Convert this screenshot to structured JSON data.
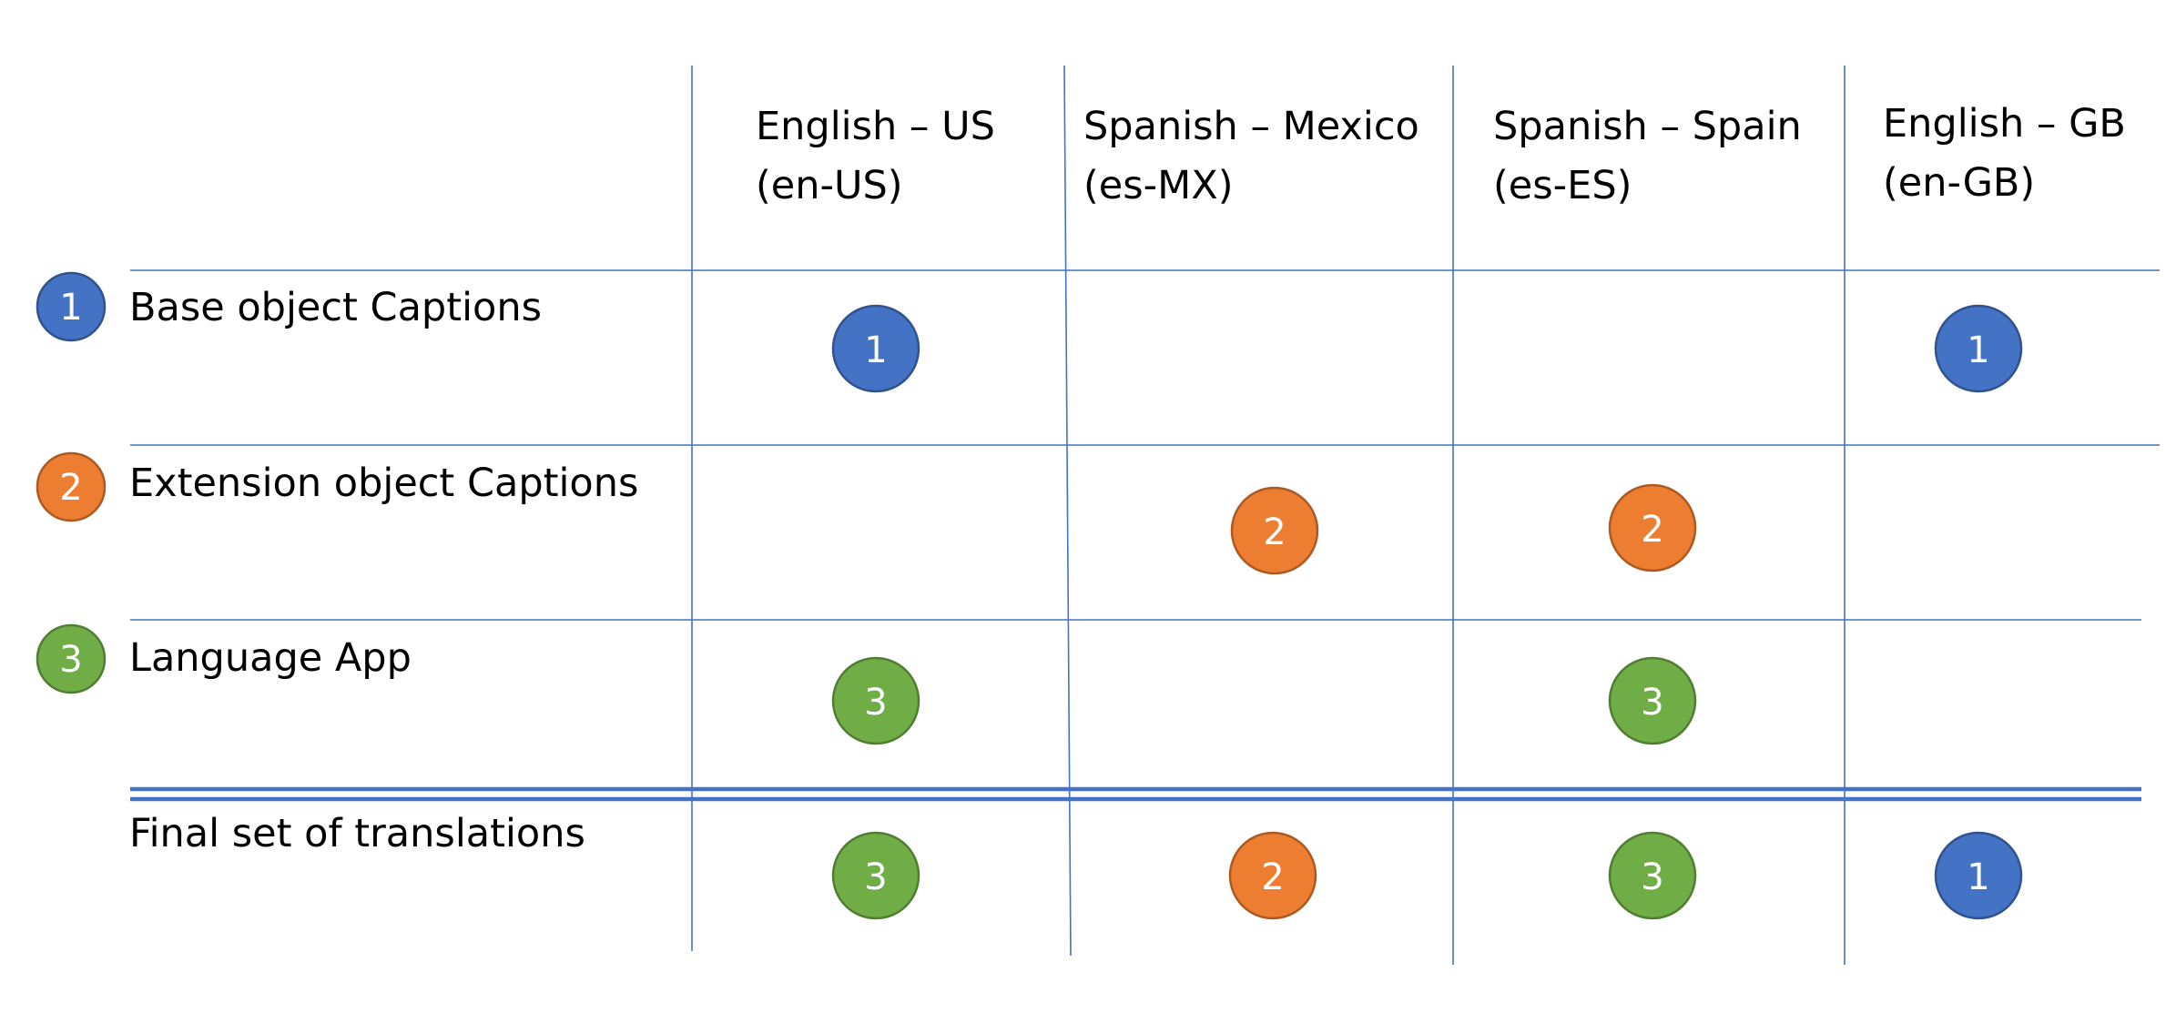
{
  "columns": [
    {
      "id": "en-us",
      "line1": "English – US",
      "line2": "(en-US)"
    },
    {
      "id": "es-mx",
      "line1": "Spanish – Mexico",
      "line2": "(es-MX)"
    },
    {
      "id": "es-es",
      "line1": "Spanish – Spain",
      "line2": "(es-ES)"
    },
    {
      "id": "en-gb",
      "line1": "English – GB",
      "line2": "(en-GB)"
    }
  ],
  "rows": [
    {
      "id": "base",
      "label": "Base object Captions",
      "badge": "1",
      "color": "#4472C4"
    },
    {
      "id": "extension",
      "label": "Extension object Captions",
      "badge": "2",
      "color": "#ED7D31"
    },
    {
      "id": "language-app",
      "label": "Language App",
      "badge": "3",
      "color": "#70AD47"
    }
  ],
  "final_row": {
    "label": "Final set of translations"
  },
  "colors": {
    "line": "#4472C4",
    "badge_text": "#FFFFFF",
    "1": "#4472C4",
    "2": "#ED7D31",
    "3": "#70AD47"
  },
  "cells": {
    "base": [
      "1",
      "",
      "",
      "1"
    ],
    "extension": [
      "",
      "2",
      "2",
      ""
    ],
    "language-app": [
      "3",
      "",
      "3",
      ""
    ],
    "final": [
      "3",
      "2",
      "3",
      "1"
    ]
  }
}
